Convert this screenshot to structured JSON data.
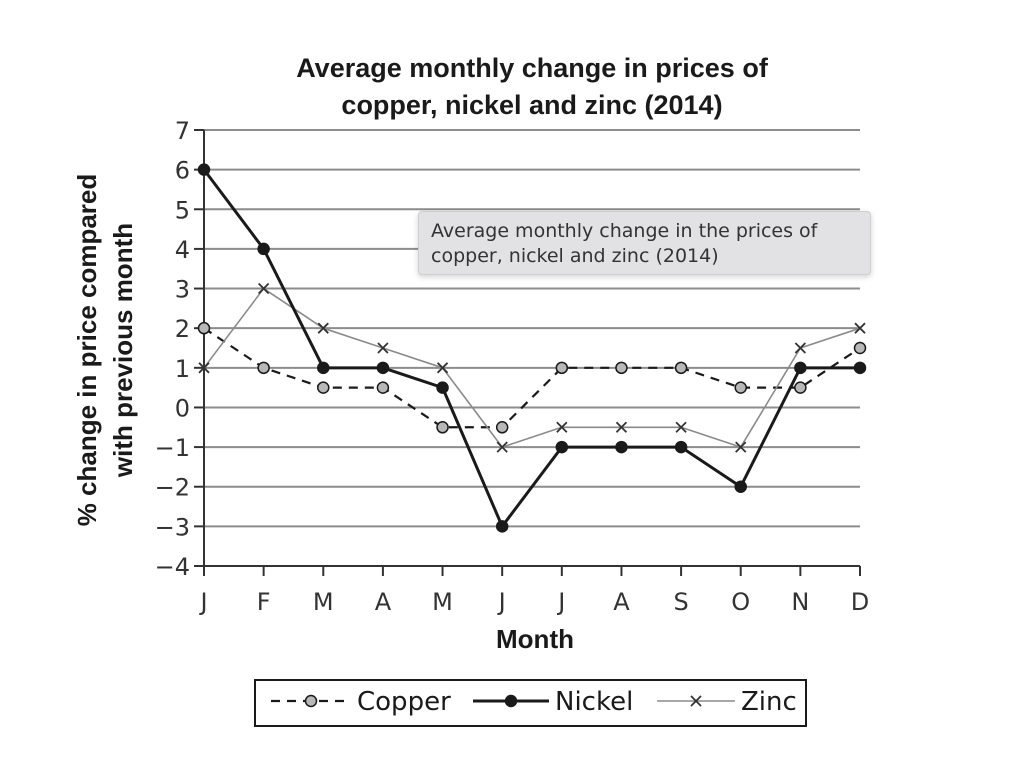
{
  "chart_data": {
    "type": "line",
    "title_lines": [
      "Average monthly change in prices of",
      "copper, nickel and zinc (2014)"
    ],
    "xlabel": "Month",
    "ylabel_lines": [
      "% change in price compared",
      "with previous month"
    ],
    "categories": [
      "J",
      "F",
      "M",
      "A",
      "M",
      "J",
      "J",
      "A",
      "S",
      "O",
      "N",
      "D"
    ],
    "ylim": [
      -4,
      7
    ],
    "yticks": [
      7,
      6,
      5,
      4,
      3,
      2,
      1,
      0,
      -1,
      -2,
      -3,
      -4
    ],
    "ytick_labels": [
      "7",
      "6",
      "5",
      "4",
      "3",
      "2",
      "1",
      "0",
      "−1",
      "−2",
      "−3",
      "−4"
    ],
    "grid": true,
    "legend_position": "bottom-center",
    "series": [
      {
        "name": "Copper",
        "values": [
          2,
          1,
          0.5,
          0.5,
          -0.5,
          -0.5,
          1,
          1,
          1,
          0.5,
          0.5,
          1.5
        ],
        "style": "dashed",
        "marker": "circle-grey",
        "color": "#1a1a1a"
      },
      {
        "name": "Nickel",
        "values": [
          6,
          4,
          1,
          1,
          0.5,
          -3,
          -1,
          -1,
          -1,
          -2,
          1,
          1
        ],
        "style": "solid",
        "marker": "circle-black",
        "color": "#1a1a1a"
      },
      {
        "name": "Zinc",
        "values": [
          1,
          3,
          2,
          1.5,
          1,
          -1,
          -0.5,
          -0.5,
          -0.5,
          -1,
          1.5,
          2
        ],
        "style": "thin",
        "marker": "x",
        "color": "#8a8a8a"
      }
    ]
  },
  "tooltip": {
    "lines": [
      "Average monthly change in the prices of",
      "copper, nickel and zinc (2014)"
    ]
  }
}
